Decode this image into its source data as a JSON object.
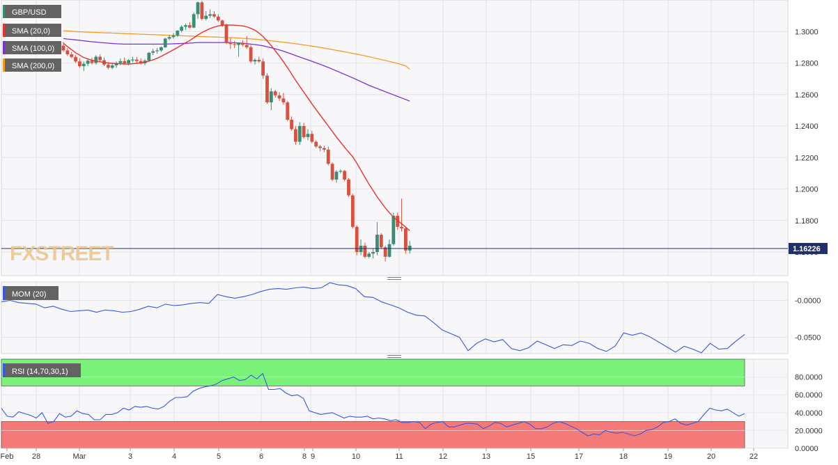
{
  "chart_data": [
    {
      "type": "candlestick",
      "symbol": "GBP/USD",
      "current_price": "1.16226",
      "watermark": "FXSTREET",
      "ylim": [
        1.145,
        1.32
      ],
      "yticks": [
        "1.3000",
        "1.2800",
        "1.2600",
        "1.2400",
        "1.2200",
        "1.2000",
        "1.1800",
        "1.1600"
      ],
      "ytick_values": [
        1.3,
        1.28,
        1.26,
        1.24,
        1.22,
        1.2,
        1.18,
        1.16
      ],
      "indicators": [
        {
          "label": "SMA (20,0)",
          "color": "#e8322c"
        },
        {
          "label": "SMA (100,0)",
          "color": "#7b2fd6"
        },
        {
          "label": "SMA (200,0)",
          "color": "#f39c25"
        }
      ],
      "candles": [
        [
          1.291,
          1.2935,
          1.287,
          1.288
        ],
        [
          1.288,
          1.2895,
          1.2845,
          1.2855
        ],
        [
          1.2855,
          1.287,
          1.283,
          1.2838
        ],
        [
          1.2838,
          1.285,
          1.28,
          1.281
        ],
        [
          1.281,
          1.283,
          1.277,
          1.278
        ],
        [
          1.278,
          1.281,
          1.275,
          1.2795
        ],
        [
          1.2795,
          1.283,
          1.278,
          1.2815
        ],
        [
          1.2815,
          1.2835,
          1.279,
          1.28
        ],
        [
          1.28,
          1.285,
          1.279,
          1.284
        ],
        [
          1.284,
          1.2855,
          1.281,
          1.2818
        ],
        [
          1.2818,
          1.2835,
          1.278,
          1.279
        ],
        [
          1.279,
          1.2805,
          1.276,
          1.277
        ],
        [
          1.277,
          1.28,
          1.276,
          1.2785
        ],
        [
          1.2785,
          1.281,
          1.277,
          1.28
        ],
        [
          1.28,
          1.283,
          1.2785,
          1.2812
        ],
        [
          1.2812,
          1.2835,
          1.279,
          1.2798
        ],
        [
          1.2798,
          1.2825,
          1.2785,
          1.2818
        ],
        [
          1.2818,
          1.284,
          1.2805,
          1.2822
        ],
        [
          1.2822,
          1.2838,
          1.28,
          1.2812
        ],
        [
          1.2812,
          1.283,
          1.279,
          1.2798
        ],
        [
          1.2798,
          1.2825,
          1.2785,
          1.2815
        ],
        [
          1.2815,
          1.287,
          1.281,
          1.2865
        ],
        [
          1.2865,
          1.289,
          1.285,
          1.2875
        ],
        [
          1.2875,
          1.2895,
          1.286,
          1.288
        ],
        [
          1.288,
          1.2905,
          1.287,
          1.29
        ],
        [
          1.29,
          1.296,
          1.2895,
          1.2955
        ],
        [
          1.2955,
          1.298,
          1.2945,
          1.2965
        ],
        [
          1.2965,
          1.299,
          1.2955,
          1.2975
        ],
        [
          1.2975,
          1.301,
          1.2965,
          1.3005
        ],
        [
          1.3005,
          1.304,
          1.2995,
          1.303
        ],
        [
          1.303,
          1.305,
          1.301,
          1.304
        ],
        [
          1.304,
          1.306,
          1.302,
          1.3025
        ],
        [
          1.3025,
          1.312,
          1.302,
          1.311
        ],
        [
          1.311,
          1.319,
          1.308,
          1.3185
        ],
        [
          1.3185,
          1.3195,
          1.307,
          1.308
        ],
        [
          1.308,
          1.313,
          1.307,
          1.31
        ],
        [
          1.31,
          1.314,
          1.3085,
          1.311
        ],
        [
          1.311,
          1.313,
          1.3085,
          1.3095
        ],
        [
          1.3095,
          1.311,
          1.306,
          1.307
        ],
        [
          1.307,
          1.3075,
          1.303,
          1.304
        ],
        [
          1.304,
          1.305,
          1.292,
          1.293
        ],
        [
          1.293,
          1.296,
          1.289,
          1.292
        ],
        [
          1.292,
          1.294,
          1.2895,
          1.2915
        ],
        [
          1.2915,
          1.293,
          1.284,
          1.2925
        ],
        [
          1.2925,
          1.2945,
          1.2905,
          1.2915
        ],
        [
          1.2915,
          1.297,
          1.289,
          1.29
        ],
        [
          1.29,
          1.2915,
          1.28,
          1.281
        ],
        [
          1.281,
          1.283,
          1.279,
          1.282
        ],
        [
          1.282,
          1.284,
          1.28,
          1.281
        ],
        [
          1.281,
          1.283,
          1.27,
          1.272
        ],
        [
          1.272,
          1.2735,
          1.254,
          1.255
        ],
        [
          1.255,
          1.264,
          1.25,
          1.262
        ],
        [
          1.262,
          1.263,
          1.258,
          1.2595
        ],
        [
          1.2595,
          1.2615,
          1.256,
          1.2575
        ],
        [
          1.2575,
          1.261,
          1.2535,
          1.255
        ],
        [
          1.255,
          1.256,
          1.243,
          1.244
        ],
        [
          1.244,
          1.246,
          1.237,
          1.238
        ],
        [
          1.238,
          1.24,
          1.228,
          1.23
        ],
        [
          1.23,
          1.2425,
          1.228,
          1.24
        ],
        [
          1.24,
          1.242,
          1.232,
          1.233
        ],
        [
          1.233,
          1.238,
          1.231,
          1.235
        ],
        [
          1.235,
          1.237,
          1.229,
          1.23
        ],
        [
          1.23,
          1.231,
          1.226,
          1.227
        ],
        [
          1.227,
          1.228,
          1.224,
          1.226
        ],
        [
          1.226,
          1.2275,
          1.2235,
          1.225
        ],
        [
          1.225,
          1.227,
          1.215,
          1.216
        ],
        [
          1.216,
          1.217,
          1.205,
          1.206
        ],
        [
          1.206,
          1.212,
          1.204,
          1.211
        ],
        [
          1.211,
          1.2125,
          1.21,
          1.2115
        ],
        [
          1.2115,
          1.212,
          1.205,
          1.206
        ],
        [
          1.206,
          1.207,
          1.195,
          1.196
        ],
        [
          1.196,
          1.197,
          1.175,
          1.176
        ],
        [
          1.176,
          1.177,
          1.158,
          1.16
        ],
        [
          1.16,
          1.168,
          1.158,
          1.164
        ],
        [
          1.164,
          1.166,
          1.156,
          1.157
        ],
        [
          1.157,
          1.16,
          1.156,
          1.159
        ],
        [
          1.159,
          1.162,
          1.156,
          1.16
        ],
        [
          1.16,
          1.179,
          1.158,
          1.171
        ],
        [
          1.171,
          1.172,
          1.162,
          1.163
        ],
        [
          1.163,
          1.164,
          1.154,
          1.157
        ],
        [
          1.157,
          1.168,
          1.1565,
          1.165
        ],
        [
          1.165,
          1.185,
          1.164,
          1.183
        ],
        [
          1.183,
          1.185,
          1.174,
          1.176
        ],
        [
          1.176,
          1.194,
          1.173,
          1.175
        ],
        [
          1.175,
          1.176,
          1.159,
          1.161
        ],
        [
          1.161,
          1.167,
          1.159,
          1.164
        ]
      ],
      "sma20": [
        1.2925,
        1.2905,
        1.2885,
        1.2865,
        1.285,
        1.2835,
        1.2826,
        1.2818,
        1.2812,
        1.2808,
        1.2803,
        1.28,
        1.2798,
        1.2796,
        1.2795,
        1.2794,
        1.2793,
        1.2795,
        1.2798,
        1.28,
        1.2805,
        1.2812,
        1.282,
        1.283,
        1.2842,
        1.2856,
        1.287,
        1.2884,
        1.2898,
        1.2913,
        1.2928,
        1.2943,
        1.296,
        1.2978,
        1.2993,
        1.3007,
        1.3019,
        1.3028,
        1.3035,
        1.304,
        1.3042,
        1.3041,
        1.304,
        1.3038,
        1.3035,
        1.303,
        1.302,
        1.3008,
        1.299,
        1.2968,
        1.294,
        1.291,
        1.2878,
        1.2845,
        1.2808,
        1.277,
        1.273,
        1.269,
        1.2652,
        1.2615,
        1.2578,
        1.254,
        1.2505,
        1.247,
        1.2435,
        1.24,
        1.2365,
        1.233,
        1.2298,
        1.2265,
        1.2235,
        1.2205,
        1.2165,
        1.212,
        1.2075,
        1.203,
        1.199,
        1.195,
        1.1915,
        1.188,
        1.185,
        1.1822,
        1.18,
        1.178,
        1.1758,
        1.1735
      ],
      "sma100": [
        1.2955,
        1.2952,
        1.295,
        1.2947,
        1.2944,
        1.2941,
        1.2938,
        1.2935,
        1.2933,
        1.293,
        1.2928,
        1.2926,
        1.2924,
        1.2922,
        1.2921,
        1.292,
        1.292,
        1.292,
        1.292,
        1.292,
        1.292,
        1.292,
        1.292,
        1.292,
        1.292,
        1.292,
        1.2921,
        1.2922,
        1.2923,
        1.2924,
        1.2925,
        1.2926,
        1.2928,
        1.293,
        1.293,
        1.293,
        1.293,
        1.293,
        1.293,
        1.293,
        1.293,
        1.2929,
        1.2928,
        1.2927,
        1.2925,
        1.2923,
        1.292,
        1.2917,
        1.2913,
        1.2909,
        1.2903,
        1.2897,
        1.289,
        1.2883,
        1.2875,
        1.2866,
        1.2857,
        1.2847,
        1.2838,
        1.2829,
        1.282,
        1.2811,
        1.2801,
        1.2792,
        1.2782,
        1.2772,
        1.2761,
        1.275,
        1.2739,
        1.2728,
        1.2717,
        1.2706,
        1.2694,
        1.2682,
        1.267,
        1.2658,
        1.2648,
        1.2638,
        1.2628,
        1.2618,
        1.2608,
        1.2598,
        1.2588,
        1.2578,
        1.2568,
        1.2558
      ],
      "sma200": [
        1.3005,
        1.3004,
        1.3002,
        1.3,
        1.2998,
        1.2997,
        1.2996,
        1.2995,
        1.2994,
        1.2993,
        1.2992,
        1.2991,
        1.299,
        1.2989,
        1.2988,
        1.2987,
        1.2986,
        1.2985,
        1.2984,
        1.2983,
        1.2982,
        1.2981,
        1.298,
        1.2979,
        1.2978,
        1.2977,
        1.2976,
        1.2975,
        1.2974,
        1.2973,
        1.2972,
        1.2971,
        1.297,
        1.2969,
        1.2968,
        1.2967,
        1.2966,
        1.2965,
        1.2964,
        1.2963,
        1.2962,
        1.2961,
        1.296,
        1.2958,
        1.2957,
        1.2955,
        1.2953,
        1.2951,
        1.2949,
        1.2947,
        1.2944,
        1.2941,
        1.2938,
        1.2935,
        1.2932,
        1.2929,
        1.2926,
        1.2922,
        1.2919,
        1.2915,
        1.2911,
        1.2907,
        1.2903,
        1.2899,
        1.2894,
        1.289,
        1.2885,
        1.288,
        1.2876,
        1.2871,
        1.2866,
        1.2861,
        1.2856,
        1.2851,
        1.2846,
        1.284,
        1.2834,
        1.2828,
        1.2822,
        1.2816,
        1.281,
        1.2804,
        1.2797,
        1.279,
        1.2782,
        1.276
      ]
    },
    {
      "type": "line",
      "title": "MOM (20)",
      "color": "#3a55e0",
      "ylim": [
        -0.072,
        0.025
      ],
      "yticks": [
        "-0.0000",
        "-0.0500"
      ],
      "ytick_values": [
        0.0,
        -0.05
      ],
      "values": [
        -0.002,
        0.0,
        -0.003,
        -0.004,
        -0.005,
        -0.01,
        -0.008,
        -0.012,
        -0.015,
        -0.014,
        -0.013,
        -0.016,
        -0.013,
        -0.014,
        -0.016,
        -0.015,
        -0.012,
        -0.008,
        -0.01,
        -0.005,
        -0.007,
        -0.006,
        -0.004,
        -0.003,
        -0.004,
        0.008,
        0.005,
        0.003,
        0.005,
        0.008,
        0.012,
        0.015,
        0.016,
        0.015,
        0.017,
        0.018,
        0.016,
        0.017,
        0.024,
        0.021,
        0.02,
        0.016,
        0.005,
        0.004,
        -0.002,
        -0.006,
        -0.01,
        -0.016,
        -0.02,
        -0.021,
        -0.03,
        -0.04,
        -0.045,
        -0.05,
        -0.068,
        -0.058,
        -0.052,
        -0.056,
        -0.053,
        -0.065,
        -0.068,
        -0.064,
        -0.055,
        -0.06,
        -0.065,
        -0.06,
        -0.061,
        -0.055,
        -0.058,
        -0.065,
        -0.069,
        -0.062,
        -0.044,
        -0.047,
        -0.044,
        -0.049,
        -0.056,
        -0.063,
        -0.07,
        -0.062,
        -0.066,
        -0.071,
        -0.058,
        -0.066,
        -0.065,
        -0.055,
        -0.046
      ]
    },
    {
      "type": "line",
      "title": "RSI (14,70,30,1)",
      "color": "#3a55e0",
      "ylim": [
        0,
        100
      ],
      "overbought": 70,
      "oversold": 30,
      "yticks": [
        "80.0000",
        "60.0000",
        "40.0000",
        "20.0000",
        "0.0000"
      ],
      "ytick_values": [
        80,
        60,
        40,
        20,
        0
      ],
      "values": [
        45,
        36,
        35,
        41,
        39,
        37,
        34,
        40,
        28,
        30,
        39,
        35,
        36,
        42,
        39,
        38,
        32,
        32,
        38,
        38,
        40,
        45,
        43,
        47,
        46,
        47,
        45,
        44,
        47,
        53,
        57,
        57,
        58,
        64,
        67,
        69,
        70,
        72,
        76,
        78,
        80,
        76,
        77,
        82,
        78,
        84,
        66,
        66,
        67,
        62,
        59,
        60,
        56,
        42,
        40,
        38,
        39,
        40,
        37,
        34,
        36,
        35,
        35,
        36,
        33,
        34,
        33,
        31,
        32,
        29,
        29,
        30,
        29,
        22,
        27,
        29,
        30,
        24,
        24,
        26,
        28,
        28,
        27,
        22,
        25,
        29,
        28,
        24,
        26,
        28,
        30,
        27,
        22,
        22,
        24,
        28,
        30,
        28,
        25,
        22,
        18,
        14,
        16,
        15,
        20,
        18,
        17,
        18,
        16,
        14,
        16,
        20,
        21,
        24,
        29,
        30,
        33,
        28,
        26,
        28,
        30,
        38,
        45,
        43,
        42,
        44,
        40,
        36,
        39
      ]
    }
  ],
  "x_axis": {
    "labels": [
      "Feb",
      "28",
      "Mar",
      "3",
      "4",
      "5",
      "6",
      "8",
      "9",
      "10",
      "11",
      "12",
      "13",
      "15",
      "17",
      "18",
      "19",
      "20",
      "22"
    ]
  }
}
